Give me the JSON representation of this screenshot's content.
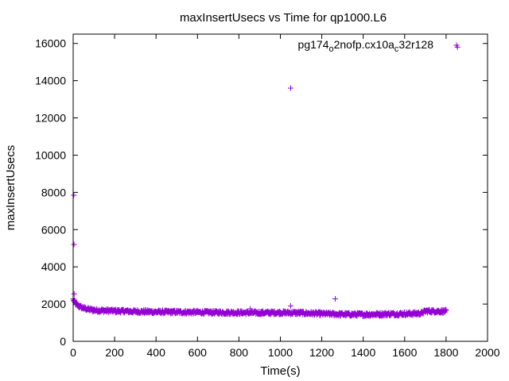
{
  "chart_data": {
    "type": "scatter",
    "title": "maxInsertUsecs vs Time for qp1000.L6",
    "xlabel": "Time(s)",
    "ylabel": "maxInsertUsecs",
    "xlim": [
      0,
      2000
    ],
    "ylim": [
      0,
      16500
    ],
    "xticks": [
      0,
      200,
      400,
      600,
      800,
      1000,
      1200,
      1400,
      1600,
      1800,
      2000
    ],
    "yticks": [
      0,
      2000,
      4000,
      6000,
      8000,
      10000,
      12000,
      14000,
      16000
    ],
    "grid": false,
    "legend_position": "top-right",
    "marker": "+",
    "series": [
      {
        "name_parts": [
          "pg174",
          "o",
          "2nofp.cx10a",
          "c",
          "32r128"
        ],
        "color": "#9400d3",
        "baseline": [
          [
            0,
            2250
          ],
          [
            10,
            2050
          ],
          [
            25,
            1900
          ],
          [
            50,
            1780
          ],
          [
            80,
            1700
          ],
          [
            120,
            1660
          ],
          [
            200,
            1630
          ],
          [
            300,
            1600
          ],
          [
            400,
            1580
          ],
          [
            500,
            1570
          ],
          [
            600,
            1560
          ],
          [
            700,
            1550
          ],
          [
            800,
            1540
          ],
          [
            900,
            1530
          ],
          [
            1000,
            1540
          ],
          [
            1100,
            1520
          ],
          [
            1200,
            1480
          ],
          [
            1300,
            1450
          ],
          [
            1400,
            1440
          ],
          [
            1500,
            1460
          ],
          [
            1600,
            1480
          ],
          [
            1680,
            1500
          ],
          [
            1700,
            1620
          ],
          [
            1800,
            1610
          ]
        ],
        "spread": 180,
        "outliers": [
          [
            3,
            7850
          ],
          [
            4,
            5200
          ],
          [
            5,
            2550
          ],
          [
            855,
            1750
          ],
          [
            1050,
            13600
          ],
          [
            1050,
            1900
          ],
          [
            1265,
            2280
          ],
          [
            1855,
            15800
          ]
        ]
      }
    ]
  }
}
